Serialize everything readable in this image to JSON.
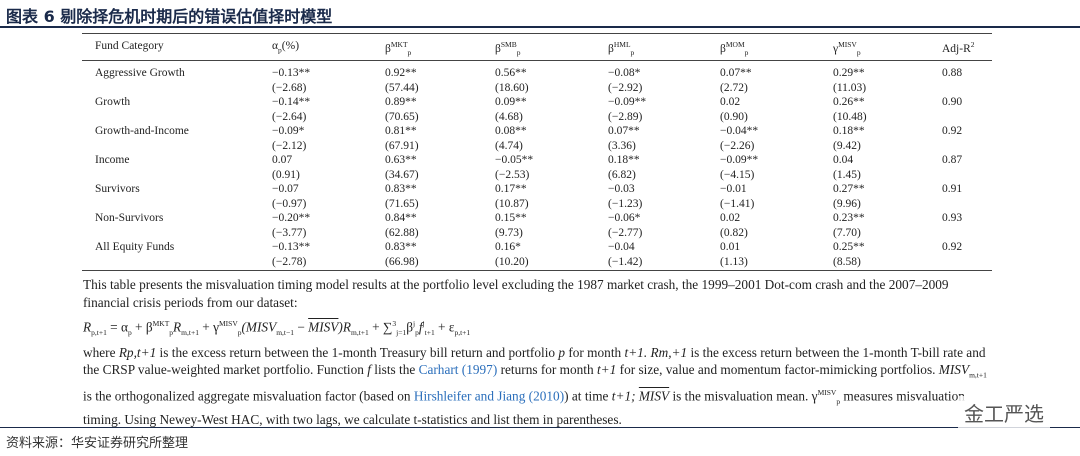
{
  "title": "图表 6 剔除择危机时期后的错误估值择时模型",
  "table": {
    "header": [
      {
        "text": "Fund Category"
      },
      {
        "text": "α",
        "sub": "p",
        "after": "(%)"
      },
      {
        "text": "β",
        "sup": "MKT",
        "sub": "p"
      },
      {
        "text": "β",
        "sup": "SMB",
        "sub": "p"
      },
      {
        "text": "β",
        "sup": "HML",
        "sub": "p"
      },
      {
        "text": "β",
        "sup": "MOM",
        "sub": "p"
      },
      {
        "text": "γ",
        "sup": "MISV",
        "sub": "p"
      },
      {
        "text": "Adj-R",
        "sup": "2"
      }
    ],
    "rows": [
      {
        "category": "Aggressive Growth",
        "coef": [
          "−0.13**",
          "0.92**",
          "0.56**",
          "−0.08*",
          "0.07**",
          "0.29**",
          "0.88"
        ],
        "tstat": [
          "(−2.68)",
          "(57.44)",
          "(18.60)",
          "(−2.92)",
          "(2.72)",
          "(11.03)"
        ]
      },
      {
        "category": "Growth",
        "coef": [
          "−0.14**",
          "0.89**",
          "0.09**",
          "−0.09**",
          "0.02",
          "0.26**",
          "0.90"
        ],
        "tstat": [
          "(−2.64)",
          "(70.65)",
          "(4.68)",
          "(−2.89)",
          "(0.90)",
          "(10.48)"
        ]
      },
      {
        "category": "Growth-and-Income",
        "coef": [
          "−0.09*",
          "0.81**",
          "0.08**",
          "0.07**",
          "−0.04**",
          "0.18**",
          "0.92"
        ],
        "tstat": [
          "(−2.12)",
          "(67.91)",
          "(4.74)",
          "(3.36)",
          "(−2.26)",
          "(9.42)"
        ]
      },
      {
        "category": "Income",
        "coef": [
          "0.07",
          "0.63**",
          "−0.05**",
          "0.18**",
          "−0.09**",
          "0.04",
          "0.87"
        ],
        "tstat": [
          "(0.91)",
          "(34.67)",
          "(−2.53)",
          "(6.82)",
          "(−4.15)",
          "(1.45)"
        ]
      },
      {
        "category": "Survivors",
        "coef": [
          "−0.07",
          "0.83**",
          "0.17**",
          "−0.03",
          "−0.01",
          "0.27**",
          "0.91"
        ],
        "tstat": [
          "(−0.97)",
          "(71.65)",
          "(10.87)",
          "(−1.23)",
          "(−1.41)",
          "(9.96)"
        ]
      },
      {
        "category": "Non-Survivors",
        "coef": [
          "−0.20**",
          "0.84**",
          "0.15**",
          "−0.06*",
          "0.02",
          "0.23**",
          "0.93"
        ],
        "tstat": [
          "(−3.77)",
          "(62.88)",
          "(9.73)",
          "(−2.77)",
          "(0.82)",
          "(7.70)"
        ]
      },
      {
        "category": "All Equity Funds",
        "coef": [
          "−0.13**",
          "0.83**",
          "0.16*",
          "−0.04",
          "0.01",
          "0.25**",
          "0.92"
        ],
        "tstat": [
          "(−2.78)",
          "(66.98)",
          "(10.20)",
          "(−1.42)",
          "(1.13)",
          "(8.58)"
        ]
      }
    ]
  },
  "note": {
    "intro": "This table presents the misvaluation timing model results at the portfolio level excluding the 1987 market crash, the 1999–2001 Dot-com crash and the 2007–2009 financial crisis periods from our dataset:",
    "formula": [
      {
        "text": "R",
        "sub": "p,t+1",
        "style": "italic"
      },
      {
        "text": " = α"
      },
      {
        "text": "",
        "sub": "p"
      },
      {
        "text": " + β",
        "sup": "MKT",
        "sub": "p"
      },
      {
        "text": "R",
        "sub": "m,t+1",
        "style": "italic"
      },
      {
        "text": " + γ",
        "sup": "MISV",
        "sub": "p"
      },
      {
        "text": "(MISV",
        "sub": "m,t−1",
        "style": "italic"
      },
      {
        "text": " − "
      },
      {
        "text": "MISV",
        "style": "over"
      },
      {
        "text": ")R",
        "sub": "m,t+1",
        "style": "italic"
      },
      {
        "text": " + ∑",
        "sup": "3",
        "sub": "j=1"
      },
      {
        "text": "β",
        "sup": "j",
        "sub": "p"
      },
      {
        "text": "f",
        "sup": "j",
        "sub": "t+1",
        "style": "italic"
      },
      {
        "text": " + ε",
        "sub": "p,t+1"
      }
    ],
    "body": [
      {
        "text": "where "
      },
      {
        "text": "Rp,t+1",
        "style": "italic"
      },
      {
        "text": " is the excess return between the 1-month Treasury bill return and portfolio "
      },
      {
        "text": "p",
        "style": "italic"
      },
      {
        "text": " for month "
      },
      {
        "text": "t+1. Rm,+1",
        "style": "italic"
      },
      {
        "text": " is the excess return between the 1-month T-bill rate and the CRSP value-weighted market portfolio. Function "
      },
      {
        "text": "f",
        "style": "italic"
      },
      {
        "text": " lists the "
      },
      {
        "text": "Carhart (1997)",
        "style": "link"
      },
      {
        "text": " returns for month "
      },
      {
        "text": "t+1",
        "style": "italic"
      },
      {
        "text": " for size, value and momentum factor-mimicking portfolios. "
      },
      {
        "text": "MISV",
        "sub": "m,t+1",
        "style": "italic"
      },
      {
        "text": " is the orthogonalized aggregate misvaluation factor (based on "
      },
      {
        "text": "Hirshleifer and Jiang (2010)",
        "style": "link"
      },
      {
        "text": ") at time "
      },
      {
        "text": "t+1; ",
        "style": "italic"
      },
      {
        "text": "MISV",
        "style": "over"
      },
      {
        "text": " is the misvaluation mean. γ",
        "sup": "MISV",
        "sub": "p"
      },
      {
        "text": " measures misvaluation timing. Using Newey-West HAC, with two lags, we calculate t-statistics and list them in parentheses."
      }
    ]
  },
  "source": "资料来源：华安证券研究所整理",
  "watermark": "金工严选"
}
